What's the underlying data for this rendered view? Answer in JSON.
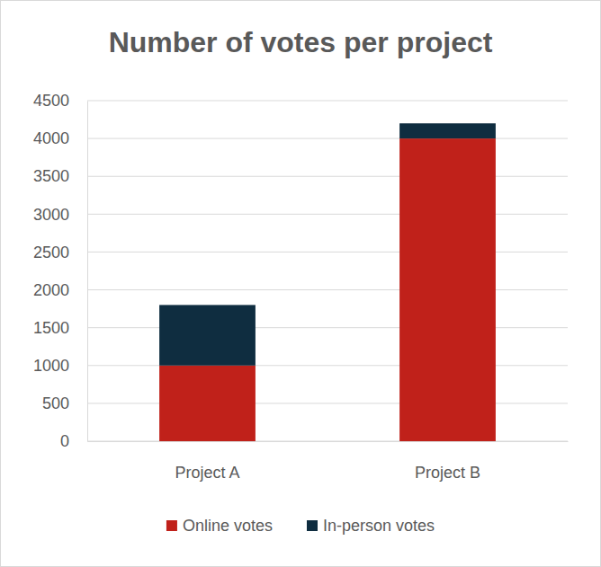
{
  "chart_data": {
    "type": "bar",
    "title": "Number of votes per project",
    "categories": [
      "Project A",
      "Project B"
    ],
    "series": [
      {
        "name": "Online votes",
        "color": "#c0211a",
        "values": [
          1000,
          4000
        ]
      },
      {
        "name": "In-person votes",
        "color": "#0f2d40",
        "values": [
          800,
          200
        ]
      }
    ],
    "stacked": true,
    "ylim": [
      0,
      4500
    ],
    "yticks": [
      0,
      500,
      1000,
      1500,
      2000,
      2500,
      3000,
      3500,
      4000,
      4500
    ],
    "grid": true,
    "legend": "bottom"
  }
}
